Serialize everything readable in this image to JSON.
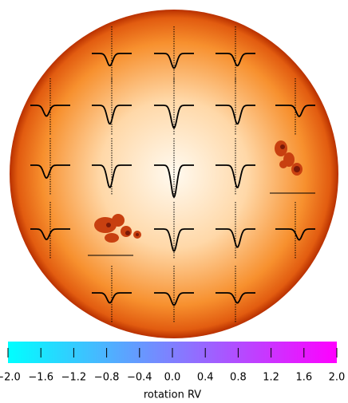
{
  "chart_data": {
    "type": "colorbar",
    "xlabel": "rotation RV",
    "xlim": [
      -2,
      2
    ],
    "xticks": [
      {
        "value": -2,
        "label": "−2.0"
      },
      {
        "value": -1.6,
        "label": "−1.6"
      },
      {
        "value": -1.2,
        "label": "−1.2"
      },
      {
        "value": -0.8,
        "label": "−0.8"
      },
      {
        "value": -0.4,
        "label": "−0.4"
      },
      {
        "value": 0,
        "label": "0.0"
      },
      0.4,
      0.8,
      1.2,
      1.6,
      {
        "value": 2,
        "label": "2.0"
      }
    ],
    "colors": [
      "#00ffff",
      "#ff00ff"
    ]
  }
}
